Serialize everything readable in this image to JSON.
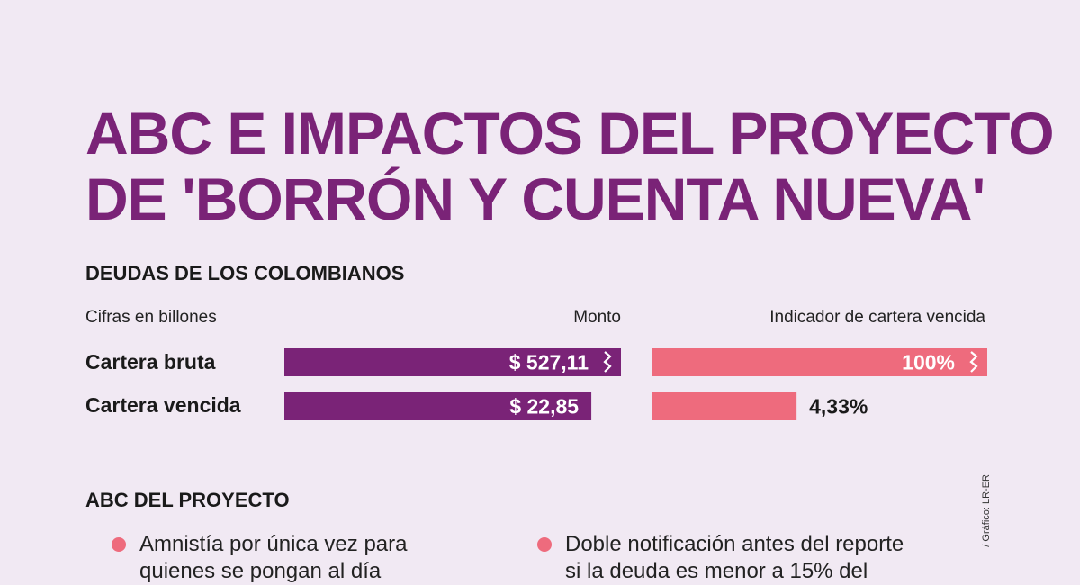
{
  "title": {
    "line1": "ABC E IMPACTOS DEL PROYECTO",
    "line2": "DE 'BORRÓN Y CUENTA NUEVA'"
  },
  "debts": {
    "heading": "DEUDAS DE LOS COLOMBIANOS",
    "units_note": "Cifras en billones",
    "col_monto": "Monto",
    "col_indicador": "Indicador de cartera vencida"
  },
  "chart_data": {
    "type": "bar",
    "categories": [
      "Cartera bruta",
      "Cartera vencida"
    ],
    "series": [
      {
        "name": "Monto",
        "values": [
          527.11,
          22.85
        ],
        "labels": [
          "$ 527,11",
          "$ 22,85"
        ],
        "color": "#7a2377",
        "axis_break": [
          true,
          false
        ],
        "visual_fraction": [
          1.0,
          0.912
        ]
      },
      {
        "name": "Indicador de cartera vencida",
        "values": [
          100,
          4.33
        ],
        "labels": [
          "100%",
          "4,33%"
        ],
        "color": "#ee6b7d",
        "axis_break": [
          true,
          false
        ],
        "visual_fraction": [
          1.0,
          0.432
        ]
      }
    ],
    "xlabel": "",
    "ylabel": ""
  },
  "abc": {
    "heading": "ABC DEL PROYECTO",
    "items": [
      {
        "line1": "Amnistía por única vez para",
        "line2": "quienes se pongan al día"
      },
      {
        "line1": "Doble notificación antes del reporte",
        "line2": "si la deuda es menor a 15% del"
      }
    ]
  },
  "credit": "/ Gráfico: LR-ER",
  "colors": {
    "accent": "#7a2377",
    "secondary": "#ee6b7d",
    "background": "#f1e9f3"
  }
}
